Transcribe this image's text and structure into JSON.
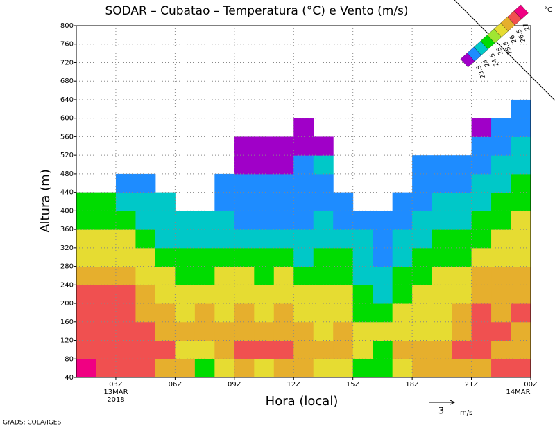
{
  "chart_data": {
    "type": "heatmap",
    "title": "SODAR – Cubatao – Temperatura (°C) e Vento (m/s)",
    "xlabel": "Hora (local)",
    "ylabel": "Altura (m)",
    "footer": "GrADS: COLA/IGES",
    "wind_scale_label": "3",
    "wind_scale_unit": "m/s",
    "colorbar": {
      "unit": "°C",
      "levels": [
        23.5,
        24,
        24.5,
        25,
        25.5,
        26,
        26.5,
        27
      ],
      "colors": [
        "#a000c8",
        "#1e8cff",
        "#00c8c8",
        "#00dc00",
        "#a0e632",
        "#e6dc32",
        "#e6af2d",
        "#f05050",
        "#f00082"
      ]
    },
    "xlim": [
      1,
      24
    ],
    "ylim": [
      40,
      800
    ],
    "xticks": [
      {
        "value": 3,
        "label": "03Z"
      },
      {
        "value": 6,
        "label": "06Z"
      },
      {
        "value": 9,
        "label": "09Z"
      },
      {
        "value": 12,
        "label": "12Z"
      },
      {
        "value": 15,
        "label": "15Z"
      },
      {
        "value": 18,
        "label": "18Z"
      },
      {
        "value": 21,
        "label": "21Z"
      },
      {
        "value": 24,
        "label": "00Z"
      }
    ],
    "date_labels": [
      {
        "value": 3,
        "lines": [
          "13MAR",
          "2018"
        ]
      },
      {
        "value": 24,
        "lines": [
          "14MAR"
        ]
      }
    ],
    "yticks": [
      40,
      80,
      120,
      160,
      200,
      240,
      280,
      320,
      360,
      400,
      440,
      480,
      520,
      560,
      600,
      640,
      680,
      720,
      760,
      800
    ],
    "grid": true,
    "x_bins": [
      1,
      2,
      3,
      4,
      5,
      6,
      7,
      8,
      9,
      10,
      11,
      12,
      13,
      14,
      15,
      16,
      17,
      18,
      19,
      20,
      21,
      22,
      23,
      24
    ],
    "y_bins": [
      40,
      80,
      120,
      160,
      200,
      240,
      280,
      320,
      360,
      400,
      440,
      480,
      520,
      560,
      600,
      640
    ],
    "values": [
      [
        27.2,
        26.7,
        26.7,
        26.7,
        26.7,
        26.2,
        25.7,
        25.7,
        24.7,
        24.7
      ],
      [
        26.7,
        26.7,
        26.7,
        26.7,
        26.7,
        26.2,
        25.7,
        25.7,
        24.7,
        24.7
      ],
      [
        26.7,
        26.7,
        26.7,
        26.7,
        26.7,
        26.2,
        25.7,
        25.7,
        24.7,
        24.2,
        23.8
      ],
      [
        26.7,
        26.7,
        26.7,
        26.2,
        26.2,
        25.7,
        25.7,
        24.7,
        24.2,
        24.2,
        23.8
      ],
      [
        26.2,
        26.7,
        26.2,
        26.2,
        25.7,
        25.7,
        24.7,
        24.2,
        24.2,
        24.2
      ],
      [
        26.2,
        25.7,
        26.2,
        25.7,
        25.7,
        24.7,
        24.7,
        24.2,
        24.2
      ],
      [
        24.7,
        25.7,
        26.2,
        26.2,
        25.7,
        24.7,
        24.7,
        24.2,
        24.2
      ],
      [
        25.7,
        26.2,
        26.2,
        25.7,
        25.7,
        25.7,
        24.7,
        24.2,
        24.2,
        23.8,
        23.8
      ],
      [
        26.2,
        26.7,
        26.2,
        26.2,
        25.7,
        25.7,
        24.7,
        24.2,
        23.8,
        23.8,
        23.8,
        23.3,
        23.3
      ],
      [
        25.7,
        26.7,
        26.2,
        25.7,
        25.7,
        24.7,
        24.7,
        24.2,
        23.8,
        23.8,
        23.8,
        23.3,
        23.3
      ],
      [
        26.2,
        26.7,
        26.2,
        26.2,
        25.7,
        25.7,
        24.7,
        24.2,
        23.8,
        23.8,
        23.8,
        23.3,
        23.3
      ],
      [
        26.2,
        26.2,
        26.2,
        25.7,
        25.7,
        24.7,
        24.2,
        24.2,
        23.8,
        23.8,
        23.8,
        23.8,
        23.3,
        23.3
      ],
      [
        25.7,
        26.2,
        25.7,
        25.7,
        25.7,
        24.7,
        24.7,
        24.2,
        24.2,
        23.8,
        23.8,
        24.2,
        23.3
      ],
      [
        25.7,
        26.2,
        26.2,
        25.7,
        25.7,
        24.7,
        24.7,
        24.2,
        23.8,
        23.8
      ],
      [
        24.7,
        25.7,
        25.7,
        24.7,
        24.7,
        24.2,
        24.2,
        24.2,
        23.8
      ],
      [
        24.7,
        24.7,
        25.7,
        24.7,
        24.2,
        24.2,
        23.8,
        23.8,
        23.8
      ],
      [
        25.7,
        26.2,
        25.7,
        25.7,
        24.7,
        24.7,
        24.2,
        24.2,
        23.8,
        23.8
      ],
      [
        26.2,
        26.2,
        25.7,
        25.7,
        25.7,
        24.7,
        24.7,
        24.2,
        24.2,
        23.8,
        23.8,
        23.8
      ],
      [
        26.2,
        26.2,
        25.7,
        25.7,
        25.7,
        25.7,
        24.7,
        24.7,
        24.2,
        24.2,
        23.8,
        23.8
      ],
      [
        26.2,
        26.7,
        26.2,
        26.2,
        25.7,
        25.7,
        24.7,
        24.7,
        24.2,
        24.2,
        23.8,
        23.8
      ],
      [
        26.2,
        26.7,
        26.7,
        26.7,
        26.2,
        26.2,
        25.7,
        24.7,
        24.7,
        24.2,
        24.2,
        23.8,
        23.8,
        23.3
      ],
      [
        26.7,
        26.2,
        26.7,
        26.2,
        26.2,
        26.2,
        25.7,
        25.7,
        24.7,
        24.7,
        24.2,
        24.2,
        23.8,
        23.8
      ],
      [
        26.7,
        26.2,
        26.2,
        26.7,
        26.2,
        26.2,
        25.7,
        25.7,
        25.7,
        24.7,
        24.7,
        24.2,
        24.2,
        23.8,
        23.8
      ]
    ]
  }
}
